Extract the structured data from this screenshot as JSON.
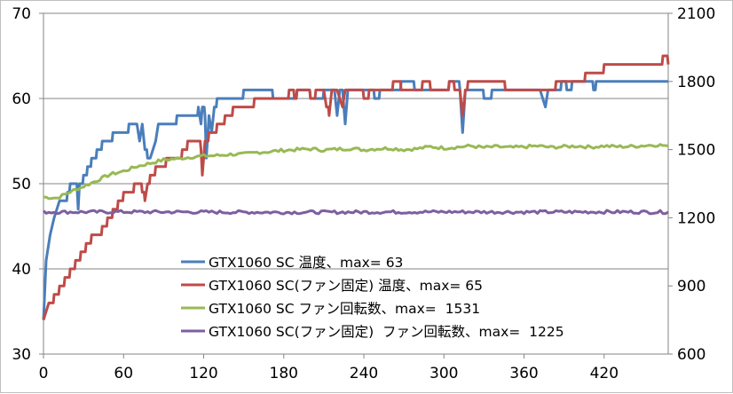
{
  "chart_data": {
    "type": "line",
    "title": "",
    "xlabel": "",
    "ylabel": "",
    "y2label": "",
    "x_ticks": [
      0,
      60,
      120,
      180,
      240,
      300,
      360,
      420
    ],
    "xlim": [
      0,
      468
    ],
    "ylim": [
      30,
      70
    ],
    "y_ticks": [
      30,
      40,
      50,
      60,
      70
    ],
    "y2lim": [
      600,
      2100
    ],
    "y2_ticks": [
      600,
      900,
      1200,
      1500,
      1800,
      2100
    ],
    "grid": "horizontal",
    "legend_position": "lower-left",
    "series": [
      {
        "name": "GTX1060 SC 温度、max= 63",
        "axis": "left",
        "color": "#4a7ebb",
        "points": [
          [
            0,
            34
          ],
          [
            2,
            41
          ],
          [
            5,
            44
          ],
          [
            8,
            46
          ],
          [
            12,
            48
          ],
          [
            18,
            49
          ],
          [
            20,
            50
          ],
          [
            25,
            50
          ],
          [
            26,
            47
          ],
          [
            27,
            50
          ],
          [
            30,
            51
          ],
          [
            33,
            52
          ],
          [
            36,
            53
          ],
          [
            40,
            54
          ],
          [
            44,
            55
          ],
          [
            48,
            55
          ],
          [
            52,
            56
          ],
          [
            60,
            56
          ],
          [
            64,
            57
          ],
          [
            70,
            57
          ],
          [
            72,
            55
          ],
          [
            74,
            57
          ],
          [
            76,
            54
          ],
          [
            78,
            53
          ],
          [
            80,
            53
          ],
          [
            84,
            55
          ],
          [
            86,
            57
          ],
          [
            96,
            57
          ],
          [
            100,
            58
          ],
          [
            114,
            58
          ],
          [
            116,
            59
          ],
          [
            118,
            57
          ],
          [
            119,
            59
          ],
          [
            121,
            58
          ],
          [
            122,
            53
          ],
          [
            124,
            58
          ],
          [
            126,
            56
          ],
          [
            128,
            59
          ],
          [
            130,
            60
          ],
          [
            140,
            60
          ],
          [
            146,
            60
          ],
          [
            150,
            61
          ],
          [
            168,
            61
          ],
          [
            172,
            60
          ],
          [
            190,
            61
          ],
          [
            196,
            61
          ],
          [
            200,
            60
          ],
          [
            206,
            60
          ],
          [
            210,
            61
          ],
          [
            218,
            61
          ],
          [
            220,
            58
          ],
          [
            222,
            61
          ],
          [
            224,
            61
          ],
          [
            226,
            57
          ],
          [
            228,
            61
          ],
          [
            240,
            61
          ],
          [
            248,
            60
          ],
          [
            252,
            61
          ],
          [
            262,
            61
          ],
          [
            268,
            62
          ],
          [
            278,
            61
          ],
          [
            296,
            61
          ],
          [
            304,
            62
          ],
          [
            310,
            62
          ],
          [
            312,
            61
          ],
          [
            314,
            56
          ],
          [
            316,
            61
          ],
          [
            324,
            61
          ],
          [
            330,
            60
          ],
          [
            336,
            61
          ],
          [
            372,
            61
          ],
          [
            376,
            59
          ],
          [
            378,
            61
          ],
          [
            384,
            61
          ],
          [
            388,
            62
          ],
          [
            392,
            61
          ],
          [
            396,
            62
          ],
          [
            410,
            62
          ],
          [
            412,
            61
          ],
          [
            414,
            62
          ],
          [
            468,
            62
          ]
        ]
      },
      {
        "name": "GTX1060 SC(ファン固定) 温度、max= 65",
        "axis": "left",
        "color": "#be4b48",
        "points": [
          [
            0,
            34
          ],
          [
            4,
            36
          ],
          [
            8,
            37
          ],
          [
            12,
            38
          ],
          [
            16,
            39
          ],
          [
            20,
            40
          ],
          [
            24,
            41
          ],
          [
            28,
            42
          ],
          [
            32,
            43
          ],
          [
            36,
            44
          ],
          [
            40,
            44
          ],
          [
            44,
            45
          ],
          [
            48,
            46
          ],
          [
            52,
            47
          ],
          [
            56,
            48
          ],
          [
            60,
            49
          ],
          [
            64,
            49
          ],
          [
            68,
            50
          ],
          [
            72,
            50
          ],
          [
            74,
            49
          ],
          [
            76,
            48
          ],
          [
            78,
            50
          ],
          [
            80,
            51
          ],
          [
            84,
            52
          ],
          [
            88,
            52
          ],
          [
            92,
            53
          ],
          [
            100,
            53
          ],
          [
            104,
            54
          ],
          [
            108,
            55
          ],
          [
            114,
            55
          ],
          [
            118,
            54
          ],
          [
            119,
            51
          ],
          [
            121,
            55
          ],
          [
            124,
            56
          ],
          [
            130,
            57
          ],
          [
            136,
            58
          ],
          [
            142,
            59
          ],
          [
            148,
            59
          ],
          [
            152,
            59
          ],
          [
            158,
            60
          ],
          [
            166,
            60
          ],
          [
            172,
            60
          ],
          [
            178,
            60
          ],
          [
            184,
            61
          ],
          [
            188,
            60
          ],
          [
            190,
            61
          ],
          [
            196,
            61
          ],
          [
            200,
            60
          ],
          [
            204,
            61
          ],
          [
            210,
            61
          ],
          [
            212,
            59
          ],
          [
            214,
            58
          ],
          [
            216,
            61
          ],
          [
            220,
            61
          ],
          [
            224,
            59
          ],
          [
            226,
            61
          ],
          [
            236,
            61
          ],
          [
            240,
            60
          ],
          [
            244,
            61
          ],
          [
            258,
            61
          ],
          [
            262,
            62
          ],
          [
            268,
            61
          ],
          [
            280,
            61
          ],
          [
            284,
            62
          ],
          [
            290,
            61
          ],
          [
            300,
            61
          ],
          [
            304,
            62
          ],
          [
            308,
            61
          ],
          [
            312,
            61
          ],
          [
            314,
            58
          ],
          [
            316,
            61
          ],
          [
            318,
            62
          ],
          [
            340,
            62
          ],
          [
            346,
            61
          ],
          [
            380,
            61
          ],
          [
            384,
            62
          ],
          [
            402,
            62
          ],
          [
            406,
            63
          ],
          [
            416,
            63
          ],
          [
            420,
            64
          ],
          [
            462,
            64
          ],
          [
            464,
            65
          ],
          [
            466,
            65
          ],
          [
            468,
            64
          ]
        ]
      },
      {
        "name": "GTX1060 SC ファン回転数、max=  1531",
        "axis": "right",
        "color": "#98b954",
        "points": [
          [
            0,
            1291
          ],
          [
            10,
            1287
          ],
          [
            20,
            1314
          ],
          [
            30,
            1338
          ],
          [
            40,
            1364
          ],
          [
            50,
            1391
          ],
          [
            60,
            1405
          ],
          [
            70,
            1426
          ],
          [
            80,
            1440
          ],
          [
            90,
            1455
          ],
          [
            100,
            1460
          ],
          [
            110,
            1467
          ],
          [
            120,
            1472
          ],
          [
            130,
            1474
          ],
          [
            140,
            1479
          ],
          [
            150,
            1480
          ],
          [
            160,
            1488
          ],
          [
            170,
            1491
          ],
          [
            180,
            1497
          ],
          [
            190,
            1500
          ],
          [
            200,
            1503
          ],
          [
            210,
            1498
          ],
          [
            220,
            1502
          ],
          [
            230,
            1505
          ],
          [
            240,
            1499
          ],
          [
            250,
            1504
          ],
          [
            260,
            1506
          ],
          [
            270,
            1500
          ],
          [
            280,
            1504
          ],
          [
            290,
            1513
          ],
          [
            300,
            1507
          ],
          [
            310,
            1511
          ],
          [
            320,
            1516
          ],
          [
            330,
            1509
          ],
          [
            340,
            1513
          ],
          [
            350,
            1509
          ],
          [
            360,
            1512
          ],
          [
            370,
            1516
          ],
          [
            380,
            1510
          ],
          [
            390,
            1513
          ],
          [
            400,
            1516
          ],
          [
            410,
            1511
          ],
          [
            420,
            1516
          ],
          [
            430,
            1513
          ],
          [
            440,
            1514
          ],
          [
            450,
            1518
          ],
          [
            460,
            1521
          ],
          [
            468,
            1516
          ]
        ]
      },
      {
        "name": "GTX1060 SC(ファン固定)  ファン回転数、max=  1225",
        "axis": "right",
        "color": "#7d5fa0",
        "points": [
          [
            0,
            1225
          ],
          [
            60,
            1226
          ],
          [
            120,
            1225
          ],
          [
            180,
            1224
          ],
          [
            240,
            1225
          ],
          [
            300,
            1226
          ],
          [
            360,
            1225
          ],
          [
            420,
            1226
          ],
          [
            468,
            1225
          ]
        ]
      }
    ]
  }
}
